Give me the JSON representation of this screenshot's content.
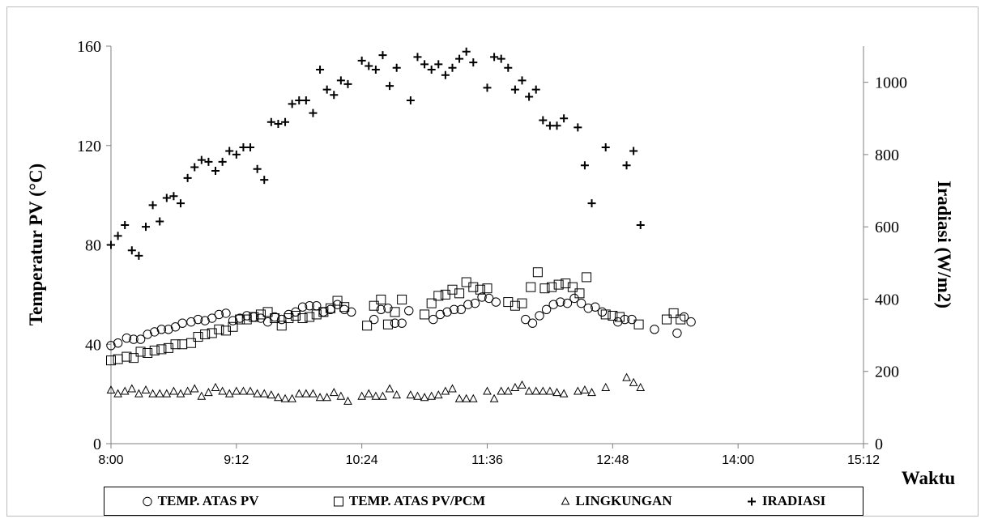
{
  "chart_data": {
    "type": "scatter",
    "title": "",
    "xlabel": "Waktu",
    "ylabel_left": "Temperatur PV (°C)",
    "ylabel_right": "Iradiasi (W/m2)",
    "x_ticks": [
      "8:00",
      "9:12",
      "10:24",
      "11:36",
      "12:48",
      "14:00",
      "15:12"
    ],
    "y_left_ticks": [
      0,
      40,
      80,
      120,
      160
    ],
    "y_right_ticks": [
      0,
      200,
      400,
      600,
      800,
      1000
    ],
    "xlim": [
      "8:00",
      "15:12"
    ],
    "ylim_left": [
      0,
      160
    ],
    "ylim_right": [
      0,
      1100
    ],
    "grid": false,
    "legend_position": "bottom",
    "series": [
      {
        "name": "TEMP. ATAS PV",
        "marker": "circle",
        "axis": "left",
        "points": [
          [
            "8:00",
            39.5
          ],
          [
            "8:04",
            40.5
          ],
          [
            "8:09",
            42.5
          ],
          [
            "8:13",
            42
          ],
          [
            "8:17",
            42
          ],
          [
            "8:21",
            44
          ],
          [
            "8:25",
            45
          ],
          [
            "8:29",
            46
          ],
          [
            "8:33",
            46
          ],
          [
            "8:37",
            47
          ],
          [
            "8:41",
            48.5
          ],
          [
            "8:46",
            49
          ],
          [
            "8:50",
            50
          ],
          [
            "8:54",
            49.5
          ],
          [
            "8:58",
            50.5
          ],
          [
            "9:02",
            52
          ],
          [
            "9:06",
            52.5
          ],
          [
            "9:10",
            49.5
          ],
          [
            "9:14",
            50.5
          ],
          [
            "9:18",
            51.5
          ],
          [
            "9:22",
            51
          ],
          [
            "9:26",
            50.5
          ],
          [
            "9:30",
            49
          ],
          [
            "9:34",
            51
          ],
          [
            "9:38",
            50
          ],
          [
            "9:42",
            52
          ],
          [
            "9:46",
            53
          ],
          [
            "9:50",
            55
          ],
          [
            "9:54",
            55.5
          ],
          [
            "9:58",
            55.5
          ],
          [
            "10:02",
            53
          ],
          [
            "10:06",
            54
          ],
          [
            "10:10",
            56
          ],
          [
            "10:14",
            54
          ],
          [
            "10:18",
            53
          ],
          [
            "10:31",
            50
          ],
          [
            "10:35",
            54
          ],
          [
            "10:39",
            54.5
          ],
          [
            "10:43",
            48.5
          ],
          [
            "10:47",
            48.5
          ],
          [
            "10:51",
            53.5
          ],
          [
            "11:05",
            50
          ],
          [
            "11:09",
            52
          ],
          [
            "11:13",
            53
          ],
          [
            "11:17",
            54
          ],
          [
            "11:21",
            54
          ],
          [
            "11:25",
            56
          ],
          [
            "11:29",
            56.5
          ],
          [
            "11:33",
            59
          ],
          [
            "11:37",
            58.5
          ],
          [
            "11:41",
            57
          ],
          [
            "11:58",
            50
          ],
          [
            "12:02",
            48.5
          ],
          [
            "12:06",
            51.5
          ],
          [
            "12:10",
            54
          ],
          [
            "12:14",
            56
          ],
          [
            "12:18",
            57
          ],
          [
            "12:22",
            56.5
          ],
          [
            "12:26",
            58.5
          ],
          [
            "12:30",
            56.5
          ],
          [
            "12:34",
            54.5
          ],
          [
            "12:38",
            55
          ],
          [
            "12:42",
            53
          ],
          [
            "12:51",
            49
          ],
          [
            "12:55",
            50
          ],
          [
            "12:59",
            50
          ],
          [
            "13:12",
            46
          ],
          [
            "13:25",
            44.5
          ],
          [
            "13:29",
            51
          ],
          [
            "13:33",
            49
          ]
        ]
      },
      {
        "name": "TEMP. ATAS PV/PCM",
        "marker": "square",
        "axis": "left",
        "points": [
          [
            "8:00",
            33.5
          ],
          [
            "8:04",
            34
          ],
          [
            "8:09",
            35
          ],
          [
            "8:13",
            34.5
          ],
          [
            "8:17",
            37
          ],
          [
            "8:21",
            36.5
          ],
          [
            "8:25",
            37.5
          ],
          [
            "8:29",
            38
          ],
          [
            "8:33",
            38.5
          ],
          [
            "8:37",
            40
          ],
          [
            "8:41",
            40
          ],
          [
            "8:46",
            40.5
          ],
          [
            "8:50",
            43
          ],
          [
            "8:54",
            44
          ],
          [
            "8:58",
            44.5
          ],
          [
            "9:02",
            46
          ],
          [
            "9:06",
            45.5
          ],
          [
            "9:10",
            47
          ],
          [
            "9:14",
            50
          ],
          [
            "9:18",
            50
          ],
          [
            "9:22",
            51
          ],
          [
            "9:26",
            52
          ],
          [
            "9:30",
            53
          ],
          [
            "9:34",
            50.5
          ],
          [
            "9:38",
            47.5
          ],
          [
            "9:42",
            50.5
          ],
          [
            "9:46",
            51.5
          ],
          [
            "9:50",
            50.5
          ],
          [
            "9:54",
            51
          ],
          [
            "9:58",
            52
          ],
          [
            "10:02",
            53
          ],
          [
            "10:06",
            54.5
          ],
          [
            "10:10",
            57.5
          ],
          [
            "10:14",
            55
          ],
          [
            "10:27",
            47.5
          ],
          [
            "10:31",
            55.5
          ],
          [
            "10:35",
            58
          ],
          [
            "10:39",
            48
          ],
          [
            "10:43",
            53
          ],
          [
            "10:47",
            58
          ],
          [
            "11:00",
            52
          ],
          [
            "11:04",
            56.5
          ],
          [
            "11:08",
            59.5
          ],
          [
            "11:12",
            60
          ],
          [
            "11:16",
            62
          ],
          [
            "11:20",
            60.5
          ],
          [
            "11:24",
            65
          ],
          [
            "11:28",
            63
          ],
          [
            "11:32",
            62
          ],
          [
            "11:36",
            62.5
          ],
          [
            "11:48",
            57
          ],
          [
            "11:52",
            55.5
          ],
          [
            "11:56",
            56.5
          ],
          [
            "12:01",
            63
          ],
          [
            "12:05",
            69
          ],
          [
            "12:09",
            62.5
          ],
          [
            "12:13",
            63
          ],
          [
            "12:17",
            64
          ],
          [
            "12:21",
            64.5
          ],
          [
            "12:25",
            63
          ],
          [
            "12:29",
            60.5
          ],
          [
            "12:33",
            67
          ],
          [
            "12:44",
            52
          ],
          [
            "12:48",
            51.5
          ],
          [
            "12:52",
            51
          ],
          [
            "13:03",
            48
          ],
          [
            "13:19",
            50
          ],
          [
            "13:23",
            52.5
          ],
          [
            "13:27",
            50
          ]
        ]
      },
      {
        "name": "LINGKUNGAN",
        "marker": "triangle",
        "axis": "left",
        "points": [
          [
            "8:00",
            21.5
          ],
          [
            "8:04",
            20
          ],
          [
            "8:08",
            21
          ],
          [
            "8:12",
            22
          ],
          [
            "8:16",
            20
          ],
          [
            "8:20",
            21.5
          ],
          [
            "8:24",
            20
          ],
          [
            "8:28",
            20
          ],
          [
            "8:32",
            20
          ],
          [
            "8:36",
            21
          ],
          [
            "8:40",
            20
          ],
          [
            "8:44",
            21
          ],
          [
            "8:48",
            22
          ],
          [
            "8:52",
            19
          ],
          [
            "8:56",
            20.5
          ],
          [
            "9:00",
            22.5
          ],
          [
            "9:04",
            21
          ],
          [
            "9:08",
            20
          ],
          [
            "9:12",
            21
          ],
          [
            "9:16",
            21
          ],
          [
            "9:20",
            21
          ],
          [
            "9:24",
            20
          ],
          [
            "9:28",
            20
          ],
          [
            "9:32",
            19.5
          ],
          [
            "9:36",
            18.5
          ],
          [
            "9:40",
            18
          ],
          [
            "9:44",
            18
          ],
          [
            "9:48",
            20
          ],
          [
            "9:52",
            20
          ],
          [
            "9:56",
            20
          ],
          [
            "10:00",
            18.5
          ],
          [
            "10:04",
            18.5
          ],
          [
            "10:08",
            20.5
          ],
          [
            "10:12",
            19
          ],
          [
            "10:16",
            17
          ],
          [
            "10:24",
            19
          ],
          [
            "10:28",
            20
          ],
          [
            "10:32",
            19
          ],
          [
            "10:36",
            19
          ],
          [
            "10:40",
            22
          ],
          [
            "10:44",
            19.5
          ],
          [
            "10:52",
            19.5
          ],
          [
            "10:56",
            19
          ],
          [
            "11:00",
            18.5
          ],
          [
            "11:04",
            19
          ],
          [
            "11:08",
            19.5
          ],
          [
            "11:12",
            21
          ],
          [
            "11:16",
            22
          ],
          [
            "11:20",
            18
          ],
          [
            "11:24",
            18
          ],
          [
            "11:28",
            18
          ],
          [
            "11:36",
            21
          ],
          [
            "11:40",
            18
          ],
          [
            "11:44",
            21
          ],
          [
            "11:48",
            21
          ],
          [
            "11:52",
            22.5
          ],
          [
            "11:56",
            23.5
          ],
          [
            "12:00",
            21
          ],
          [
            "12:04",
            21
          ],
          [
            "12:08",
            21
          ],
          [
            "12:12",
            21
          ],
          [
            "12:16",
            20.5
          ],
          [
            "12:20",
            20
          ],
          [
            "12:28",
            21
          ],
          [
            "12:32",
            21.5
          ],
          [
            "12:36",
            20.5
          ],
          [
            "12:44",
            22.5
          ],
          [
            "12:56",
            26.5
          ],
          [
            "13:00",
            24.5
          ],
          [
            "13:04",
            22.5
          ]
        ]
      },
      {
        "name": "IRADIASI",
        "marker": "plus",
        "axis": "right",
        "points": [
          [
            "8:00",
            550
          ],
          [
            "8:04",
            575
          ],
          [
            "8:08",
            605
          ],
          [
            "8:12",
            535
          ],
          [
            "8:16",
            520
          ],
          [
            "8:20",
            600
          ],
          [
            "8:24",
            660
          ],
          [
            "8:28",
            615
          ],
          [
            "8:32",
            680
          ],
          [
            "8:36",
            685
          ],
          [
            "8:40",
            665
          ],
          [
            "8:44",
            735
          ],
          [
            "8:48",
            765
          ],
          [
            "8:52",
            785
          ],
          [
            "8:56",
            780
          ],
          [
            "9:00",
            755
          ],
          [
            "9:04",
            780
          ],
          [
            "9:08",
            810
          ],
          [
            "9:12",
            800
          ],
          [
            "9:16",
            820
          ],
          [
            "9:20",
            820
          ],
          [
            "9:24",
            760
          ],
          [
            "9:28",
            730
          ],
          [
            "9:32",
            890
          ],
          [
            "9:36",
            885
          ],
          [
            "9:40",
            890
          ],
          [
            "9:44",
            940
          ],
          [
            "9:48",
            950
          ],
          [
            "9:52",
            950
          ],
          [
            "9:56",
            915
          ],
          [
            "10:00",
            1035
          ],
          [
            "10:04",
            980
          ],
          [
            "10:08",
            965
          ],
          [
            "10:12",
            1005
          ],
          [
            "10:16",
            995
          ],
          [
            "10:24",
            1060
          ],
          [
            "10:28",
            1045
          ],
          [
            "10:32",
            1035
          ],
          [
            "10:36",
            1075
          ],
          [
            "10:40",
            990
          ],
          [
            "10:44",
            1040
          ],
          [
            "10:52",
            950
          ],
          [
            "10:56",
            1070
          ],
          [
            "11:00",
            1050
          ],
          [
            "11:04",
            1035
          ],
          [
            "11:08",
            1050
          ],
          [
            "11:12",
            1020
          ],
          [
            "11:16",
            1040
          ],
          [
            "11:20",
            1065
          ],
          [
            "11:24",
            1085
          ],
          [
            "11:28",
            1055
          ],
          [
            "11:36",
            985
          ],
          [
            "11:40",
            1070
          ],
          [
            "11:44",
            1065
          ],
          [
            "11:48",
            1040
          ],
          [
            "11:52",
            980
          ],
          [
            "11:56",
            1005
          ],
          [
            "12:00",
            960
          ],
          [
            "12:04",
            980
          ],
          [
            "12:08",
            895
          ],
          [
            "12:12",
            880
          ],
          [
            "12:16",
            880
          ],
          [
            "12:20",
            900
          ],
          [
            "12:28",
            875
          ],
          [
            "12:32",
            770
          ],
          [
            "12:36",
            665
          ],
          [
            "12:44",
            820
          ],
          [
            "12:56",
            770
          ],
          [
            "13:00",
            810
          ],
          [
            "13:04",
            605
          ]
        ]
      }
    ]
  }
}
